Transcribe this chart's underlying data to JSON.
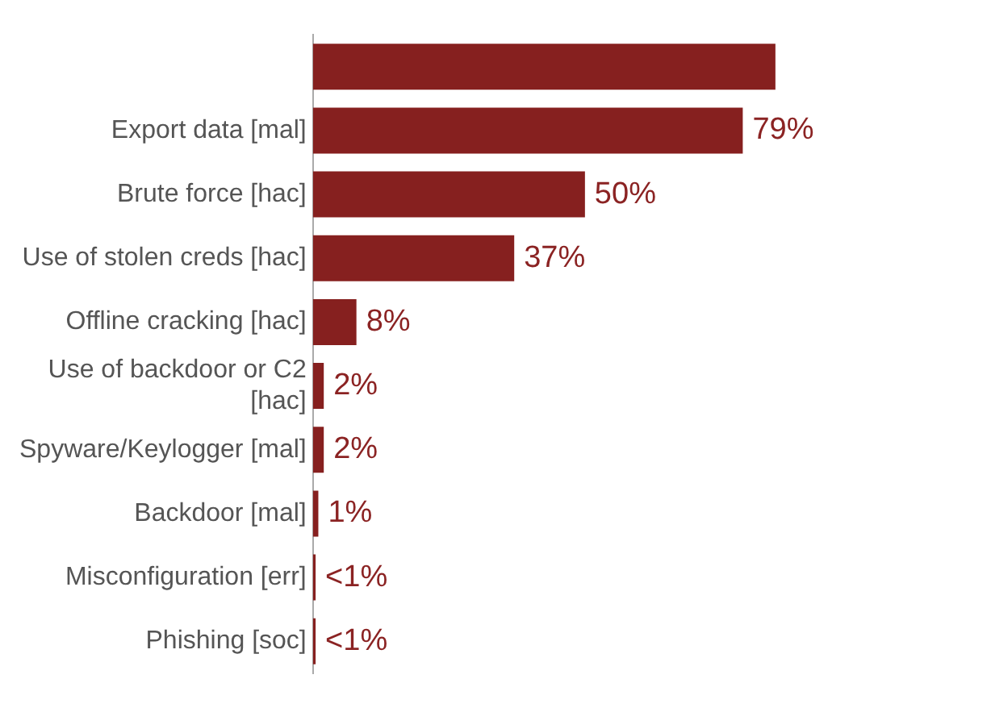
{
  "chart_data": {
    "type": "bar",
    "orientation": "horizontal",
    "categories": [
      null,
      "Export data [mal]",
      "Brute force [hac]",
      "Use of stolen creds [hac]",
      "Offline cracking [hac]",
      "Use of backdoor or C2 [hac]",
      "Spyware/Keylogger [mal]",
      "Backdoor [mal]",
      "Misconfiguration [err]",
      "Phishing [soc]"
    ],
    "values": [
      85,
      79,
      50,
      37,
      8,
      2,
      2,
      1,
      0.5,
      0.5
    ],
    "value_labels": [
      null,
      "79%",
      "50%",
      "37%",
      "8%",
      "2%",
      "2%",
      "1%",
      "<1%",
      "<1%"
    ],
    "color": "#86201f"
  }
}
